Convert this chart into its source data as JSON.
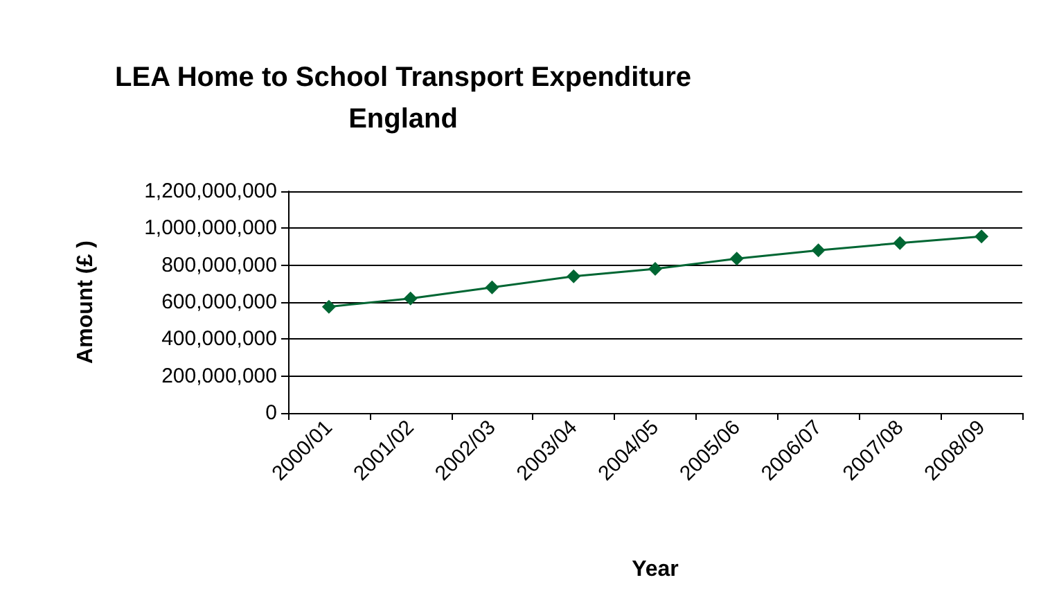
{
  "chart_data": {
    "type": "line",
    "title": "LEA Home to School Transport Expenditure\nEngland",
    "xlabel": "Year",
    "ylabel": "Amount (£ )",
    "categories": [
      "2000/01",
      "2001/02",
      "2002/03",
      "2003/04",
      "2004/05",
      "2005/06",
      "2006/07",
      "2007/08",
      "2008/09"
    ],
    "series": [
      {
        "color": "#006633",
        "values": [
          575000000,
          620000000,
          680000000,
          740000000,
          780000000,
          835000000,
          880000000,
          920000000,
          955000000
        ]
      }
    ],
    "ylim": [
      0,
      1200000000
    ],
    "yticks": [
      0,
      {
        "value": 200000000,
        "label": "200,000,000"
      },
      {
        "value": 400000000,
        "label": "400,000,000"
      },
      {
        "value": 600000000,
        "label": "600,000,000"
      },
      {
        "value": 800000000,
        "label": "800,000,000"
      },
      {
        "value": 1000000000,
        "label": "1,000,000,000"
      },
      {
        "value": 1200000000,
        "label": "1,200,000,000"
      }
    ],
    "grid": "y",
    "marker": "diamond",
    "line_style": "solid"
  }
}
